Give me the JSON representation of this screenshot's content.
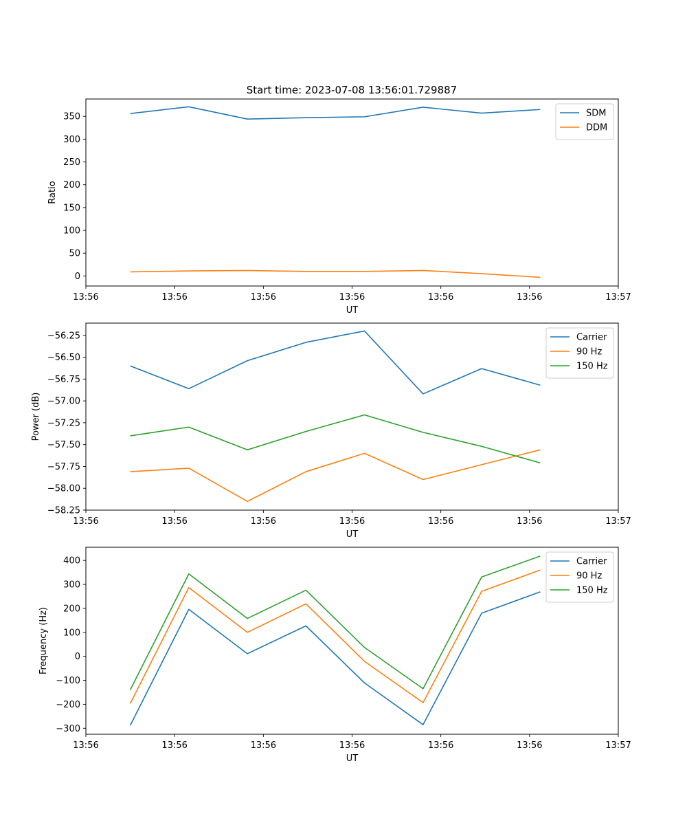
{
  "figure_title": "Start time: 2023-07-08 13:56:01.729887",
  "colors": {
    "blue": "#1f77b4",
    "orange": "#ff7f0e",
    "green": "#2ca02c"
  },
  "chart_data": [
    {
      "type": "line",
      "title": "Start time: 2023-07-08 13:56:01.729887",
      "xlabel": "UT",
      "ylabel": "Ratio",
      "xlim": [
        0,
        12
      ],
      "x": [
        1,
        2.32,
        3.64,
        4.96,
        6.28,
        7.6,
        8.92,
        10.24
      ],
      "xticks": [
        0,
        2,
        4,
        6,
        8,
        10,
        12
      ],
      "xtick_labels": [
        "13:56",
        "13:56",
        "13:56",
        "13:56",
        "13:56",
        "13:56",
        "13:57"
      ],
      "ylim": [
        -22,
        388
      ],
      "yticks": [
        0,
        50,
        100,
        150,
        200,
        250,
        300,
        350
      ],
      "ytick_labels": [
        "0",
        "50",
        "100",
        "150",
        "200",
        "250",
        "300",
        "350"
      ],
      "legend_position": "top-right",
      "series": [
        {
          "name": "SDM",
          "color": "#1f77b4",
          "values": [
            356,
            371,
            344,
            347,
            349,
            370,
            357,
            365
          ]
        },
        {
          "name": "DDM",
          "color": "#ff7f0e",
          "values": [
            9,
            11,
            12,
            10,
            10,
            12,
            5,
            -3
          ]
        }
      ]
    },
    {
      "type": "line",
      "title": "",
      "xlabel": "UT",
      "ylabel": "Power (dB)",
      "xlim": [
        0,
        12
      ],
      "x": [
        1,
        2.32,
        3.64,
        4.96,
        6.28,
        7.6,
        8.92,
        10.24
      ],
      "xticks": [
        0,
        2,
        4,
        6,
        8,
        10,
        12
      ],
      "xtick_labels": [
        "13:56",
        "13:56",
        "13:56",
        "13:56",
        "13:56",
        "13:56",
        "13:57"
      ],
      "ylim": [
        -58.25,
        -56.11
      ],
      "yticks": [
        -58.25,
        -58.0,
        -57.75,
        -57.5,
        -57.25,
        -57.0,
        -56.75,
        -56.5,
        -56.25
      ],
      "ytick_labels": [
        "−58.25",
        "−58.00",
        "−57.75",
        "−57.50",
        "−57.25",
        "−57.00",
        "−56.75",
        "−56.50",
        "−56.25"
      ],
      "legend_position": "top-right",
      "series": [
        {
          "name": "Carrier",
          "color": "#1f77b4",
          "values": [
            -56.6,
            -56.86,
            -56.54,
            -56.33,
            -56.2,
            -56.92,
            -56.63,
            -56.82
          ]
        },
        {
          "name": "90 Hz",
          "color": "#ff7f0e",
          "values": [
            -57.81,
            -57.77,
            -58.15,
            -57.81,
            -57.6,
            -57.9,
            -57.73,
            -57.56
          ]
        },
        {
          "name": "150 Hz",
          "color": "#2ca02c",
          "values": [
            -57.4,
            -57.3,
            -57.56,
            -57.35,
            -57.16,
            -57.36,
            -57.52,
            -57.71
          ]
        }
      ]
    },
    {
      "type": "line",
      "title": "",
      "xlabel": "UT",
      "ylabel": "Frequency (Hz)",
      "xlim": [
        0,
        12
      ],
      "x": [
        1,
        2.32,
        3.64,
        4.96,
        6.28,
        7.6,
        8.92,
        10.24
      ],
      "xticks": [
        0,
        2,
        4,
        6,
        8,
        10,
        12
      ],
      "xtick_labels": [
        "13:56",
        "13:56",
        "13:56",
        "13:56",
        "13:56",
        "13:56",
        "13:57"
      ],
      "ylim": [
        -325,
        455
      ],
      "yticks": [
        -300,
        -200,
        -100,
        0,
        100,
        200,
        300,
        400
      ],
      "ytick_labels": [
        "−300",
        "−200",
        "−100",
        "0",
        "100",
        "200",
        "300",
        "400"
      ],
      "legend_position": "top-right",
      "series": [
        {
          "name": "Carrier",
          "color": "#1f77b4",
          "values": [
            -288,
            196,
            11,
            127,
            -111,
            -285,
            180,
            269
          ]
        },
        {
          "name": "90 Hz",
          "color": "#ff7f0e",
          "values": [
            -197,
            287,
            100,
            219,
            -21,
            -193,
            271,
            360
          ]
        },
        {
          "name": "150 Hz",
          "color": "#2ca02c",
          "values": [
            -140,
            344,
            158,
            276,
            37,
            -135,
            331,
            418
          ]
        }
      ]
    }
  ]
}
